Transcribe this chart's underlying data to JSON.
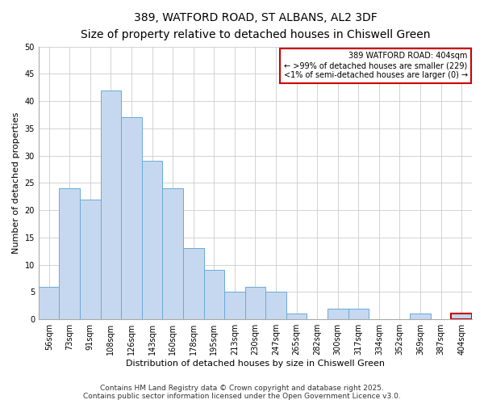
{
  "title": "389, WATFORD ROAD, ST ALBANS, AL2 3DF",
  "subtitle": "Size of property relative to detached houses in Chiswell Green",
  "xlabel": "Distribution of detached houses by size in Chiswell Green",
  "ylabel": "Number of detached properties",
  "bar_labels": [
    "56sqm",
    "73sqm",
    "91sqm",
    "108sqm",
    "126sqm",
    "143sqm",
    "160sqm",
    "178sqm",
    "195sqm",
    "213sqm",
    "230sqm",
    "247sqm",
    "265sqm",
    "282sqm",
    "300sqm",
    "317sqm",
    "334sqm",
    "352sqm",
    "369sqm",
    "387sqm",
    "404sqm"
  ],
  "bar_values": [
    6,
    24,
    22,
    42,
    37,
    29,
    24,
    13,
    9,
    5,
    6,
    5,
    1,
    0,
    2,
    2,
    0,
    0,
    1,
    0,
    1
  ],
  "bar_color": "#c5d8f0",
  "bar_edge_color": "#6aaad4",
  "highlight_bar_index": 20,
  "highlight_bar_edge_color": "#cc0000",
  "ylim": [
    0,
    50
  ],
  "yticks": [
    0,
    5,
    10,
    15,
    20,
    25,
    30,
    35,
    40,
    45,
    50
  ],
  "grid_color": "#cccccc",
  "background_color": "#ffffff",
  "annotation_box_text_line1": "389 WATFORD ROAD: 404sqm",
  "annotation_box_text_line2": "← >99% of detached houses are smaller (229)",
  "annotation_box_text_line3": "<1% of semi-detached houses are larger (0) →",
  "annotation_box_edge_color": "#cc0000",
  "footer_line1": "Contains HM Land Registry data © Crown copyright and database right 2025.",
  "footer_line2": "Contains public sector information licensed under the Open Government Licence v3.0.",
  "title_fontsize": 10,
  "subtitle_fontsize": 9,
  "axis_label_fontsize": 8,
  "tick_fontsize": 7,
  "annotation_fontsize": 7,
  "footer_fontsize": 6.5
}
